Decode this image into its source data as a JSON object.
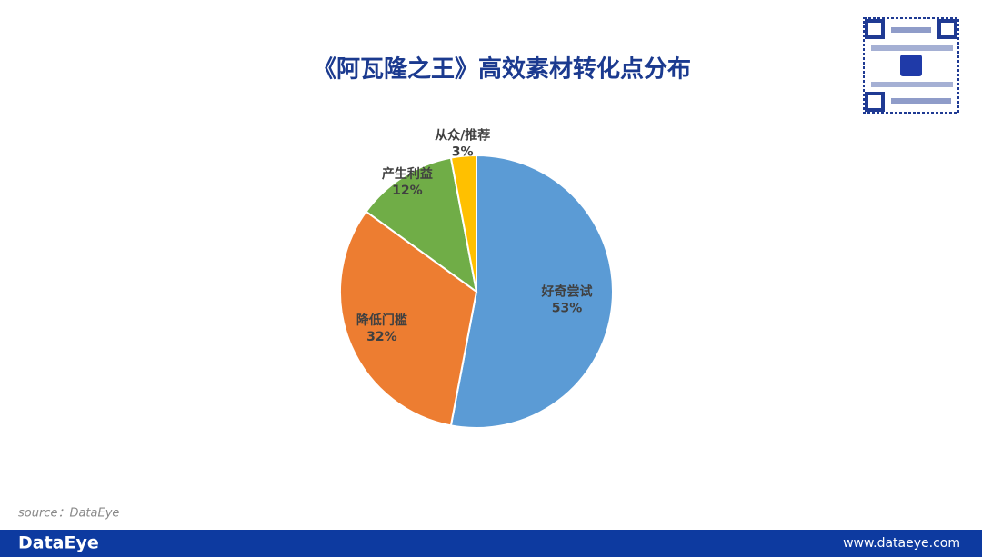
{
  "chart_data": {
    "type": "pie",
    "title": "《阿瓦隆之王》高效素材转化点分布",
    "categories": [
      "好奇尝试",
      "降低门槛",
      "产生利益",
      "从众/推荐"
    ],
    "values": [
      53,
      32,
      12,
      3
    ],
    "value_labels": [
      "53%",
      "32%",
      "12%",
      "3%"
    ],
    "colors": [
      "#5b9bd5",
      "#ed7d31",
      "#70ad47",
      "#ffc000"
    ]
  },
  "source": "source：DataEye",
  "footer": {
    "logo": "DataEye",
    "url": "www.dataeye.com"
  }
}
